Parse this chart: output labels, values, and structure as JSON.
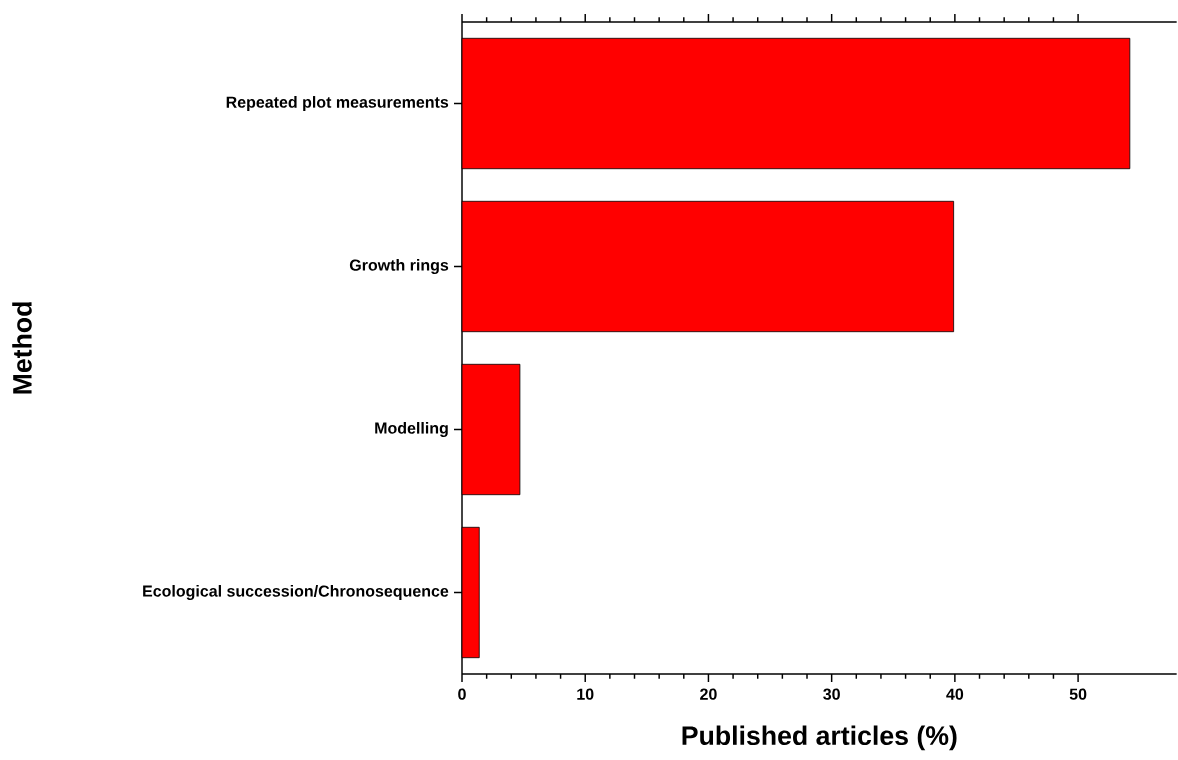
{
  "chart_data": {
    "type": "bar",
    "orientation": "horizontal",
    "categories": [
      "Repeated plot measurements",
      "Growth rings",
      "Modelling",
      "Ecological succession/Chronosequence"
    ],
    "values": [
      54.2,
      39.9,
      4.7,
      1.4
    ],
    "color": "#ff0000",
    "xlabel": "Published articles (%)",
    "ylabel": "Method",
    "xlim": [
      0,
      58
    ],
    "xticks": [
      0,
      10,
      20,
      30,
      40,
      50
    ],
    "grid": false
  }
}
